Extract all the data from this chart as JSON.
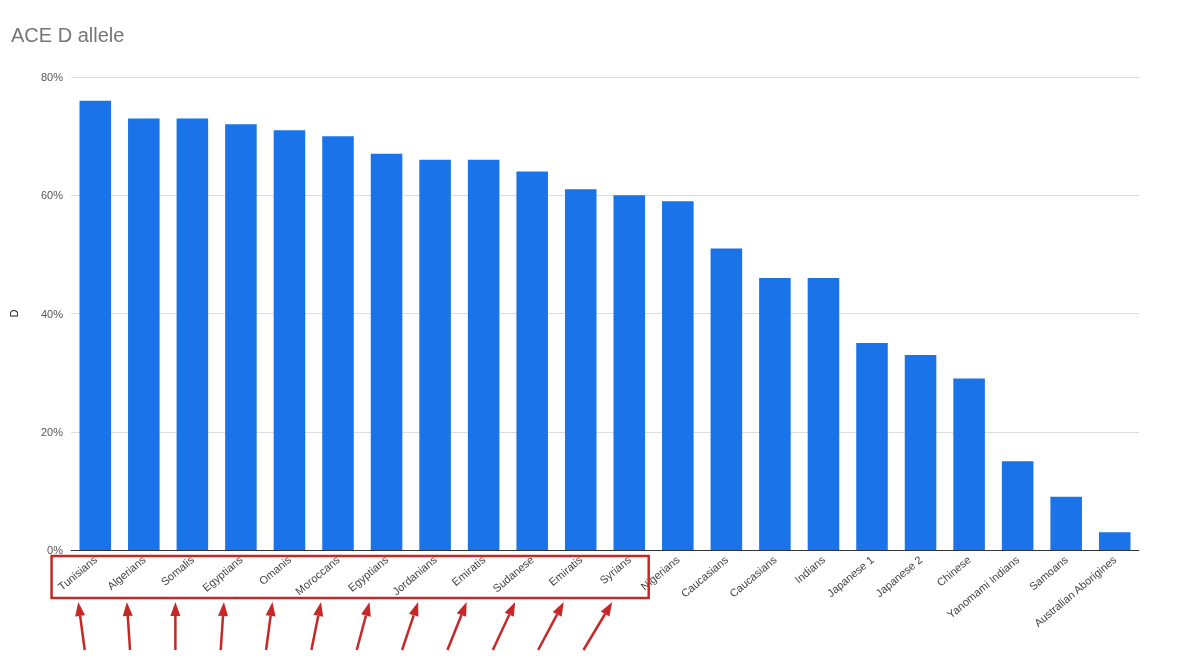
{
  "chart_data": {
    "type": "bar",
    "title": "ACE D allele",
    "ylabel": "D",
    "categories": [
      "Tunisians",
      "Algerians",
      "Somalis",
      "Egyptians",
      "Omanis",
      "Moroccans",
      "Egyptians",
      "Jordanians",
      "Emiratis",
      "Sudanese",
      "Emiratis",
      "Syrians",
      "Nigerians",
      "Caucasians",
      "Caucasians",
      "Indians",
      "Japanese 1",
      "Japanese 2",
      "Chinese",
      "Yanomami Indians",
      "Samoans",
      "Australian Aborigines"
    ],
    "values": [
      76,
      73,
      73,
      72,
      71,
      70,
      67,
      66,
      66,
      64,
      61,
      60,
      59,
      51,
      46,
      46,
      35,
      33,
      29,
      15,
      9,
      3
    ],
    "color": "#1a73e8",
    "ylim": [
      0,
      80
    ],
    "yticks": [
      {
        "value": 0,
        "label": "0%"
      },
      {
        "value": 20,
        "label": "20%"
      },
      {
        "value": 40,
        "label": "40%"
      },
      {
        "value": 60,
        "label": "60%"
      },
      {
        "value": 80,
        "label": "80%"
      }
    ],
    "grid": "y"
  }
}
